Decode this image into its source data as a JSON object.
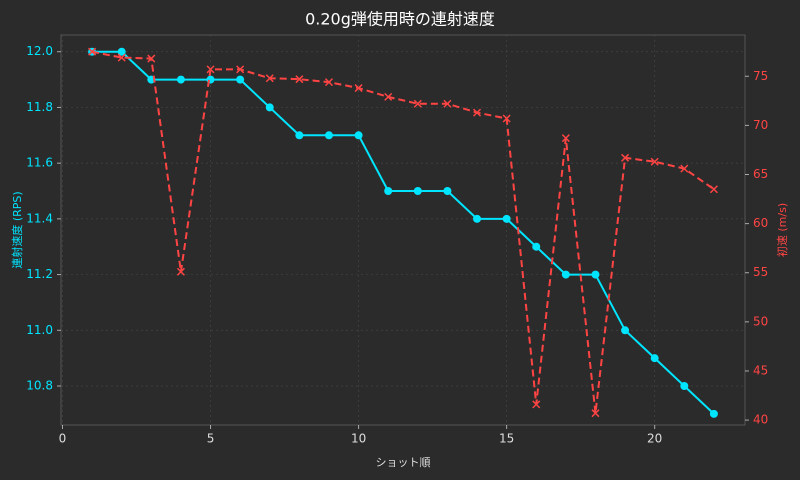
{
  "chart_data": {
    "type": "line",
    "title": "0.20g弾使用時の連射速度",
    "xlabel": "ショット順",
    "ylabel": "連射速度 (RPS)",
    "y2label": "初速 (m/s)",
    "x": [
      1,
      2,
      3,
      4,
      5,
      6,
      7,
      8,
      9,
      10,
      11,
      12,
      13,
      14,
      15,
      16,
      17,
      18,
      19,
      20,
      21,
      22
    ],
    "series": [
      {
        "name": "連射速度 (RPS)",
        "color": "#00e5ff",
        "marker": "o",
        "style": "solid",
        "values": [
          12.0,
          12.0,
          11.9,
          11.9,
          11.9,
          11.9,
          11.8,
          11.7,
          11.7,
          11.7,
          11.5,
          11.5,
          11.5,
          11.4,
          11.4,
          11.3,
          11.2,
          11.2,
          11.0,
          10.9,
          10.8,
          10.7
        ]
      },
      {
        "name": "初速 (m/s)",
        "color": "#ff4444",
        "marker": "x",
        "style": "dashed",
        "axis": "y2",
        "values": [
          77.5,
          76.9,
          76.8,
          55.1,
          75.7,
          75.7,
          74.8,
          74.7,
          74.4,
          73.8,
          72.9,
          72.2,
          72.2,
          71.3,
          70.7,
          41.6,
          68.7,
          40.7,
          66.7,
          66.3,
          65.6,
          63.5
        ]
      }
    ],
    "xlim": [
      -0.05,
      23.05
    ],
    "xticks": [
      0,
      5,
      10,
      15,
      20
    ],
    "ylim": [
      10.66,
      12.06
    ],
    "yticks": [
      10.8,
      {
        "value": 11.0,
        "label": "11.0"
      },
      11.2,
      11.4,
      11.6,
      11.8,
      {
        "value": 12.0,
        "label": "12.0"
      }
    ],
    "y2lim": [
      39.5,
      79.2
    ],
    "y2ticks": [
      40,
      45,
      50,
      55,
      60,
      65,
      70,
      75
    ],
    "grid": true
  }
}
